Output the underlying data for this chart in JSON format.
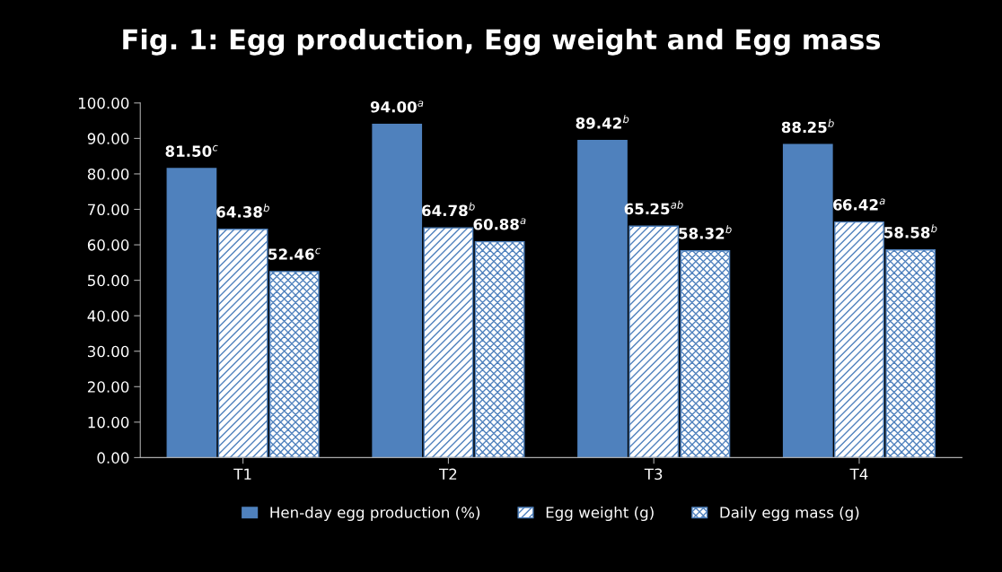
{
  "chart_data": {
    "type": "bar",
    "title": "Fig. 1: Egg production, Egg weight and Egg mass",
    "categories": [
      "T1",
      "T2",
      "T3",
      "T4"
    ],
    "series": [
      {
        "name": "Hen-day egg production (%)",
        "color": "#4f81bd",
        "values": [
          81.5,
          94.0,
          89.42,
          88.25
        ],
        "value_labels": [
          "81.50$^{c}$",
          "94.00$^{a}$",
          "89.42$^{b}$",
          "88.25$^{b}$"
        ]
      },
      {
        "name": "Egg weight (g)",
        "color": "#4f81bd",
        "values": [
          64.38,
          64.78,
          65.25,
          66.42
        ],
        "value_labels": [
          "64.38$^{b}$",
          "64.78$^{b}$",
          "65.25$^{ab}$",
          "66.42$^{a}$"
        ]
      },
      {
        "name": "Daily egg mass (g)",
        "color": "#4f81bd",
        "values": [
          52.46,
          60.88,
          58.32,
          58.58
        ],
        "value_labels": [
          "52.46$^{c}$",
          "60.88$^{a}$",
          "58.32$^{b}$",
          "58.58$^{b}$"
        ]
      }
    ],
    "ylim": [
      0,
      100
    ],
    "yticks": [
      {
        "value": 0,
        "label": "0.00"
      },
      {
        "value": 10,
        "label": "10.00"
      },
      {
        "value": 20,
        "label": "20.00"
      },
      {
        "value": 30,
        "label": "30.00"
      },
      {
        "value": 40,
        "label": "40.00"
      },
      {
        "value": 50,
        "label": "50.00"
      },
      {
        "value": 60,
        "label": "60.00"
      },
      {
        "value": 70,
        "label": "70.00"
      },
      {
        "value": 80,
        "label": "80.00"
      },
      {
        "value": 90,
        "label": "90.00"
      },
      {
        "value": 100,
        "label": "100.00"
      }
    ],
    "grid": false,
    "legend": "bottom"
  }
}
